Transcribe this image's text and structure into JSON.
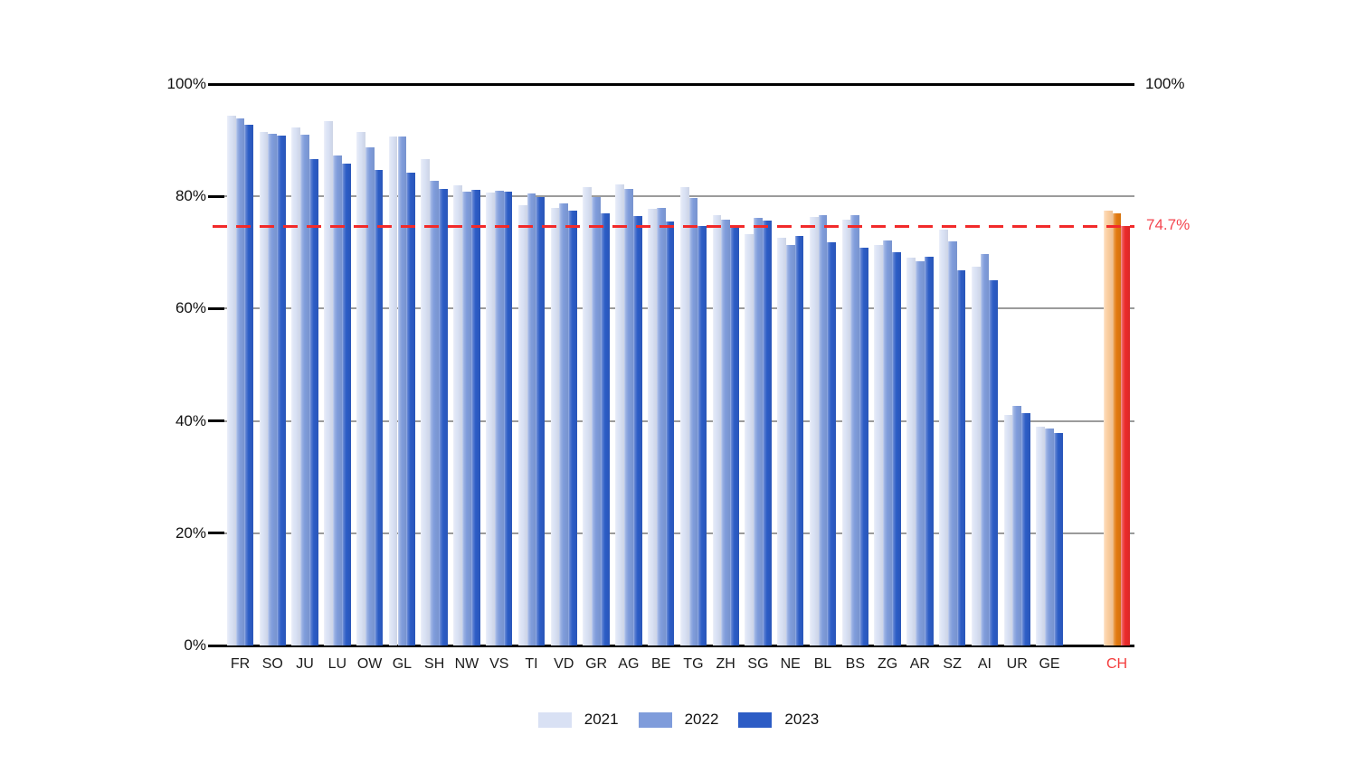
{
  "chart_data": {
    "type": "bar",
    "title": "",
    "categories": [
      "FR",
      "SO",
      "JU",
      "LU",
      "OW",
      "GL",
      "SH",
      "NW",
      "VS",
      "TI",
      "VD",
      "GR",
      "AG",
      "BE",
      "TG",
      "ZH",
      "SG",
      "NE",
      "BL",
      "BS",
      "ZG",
      "AR",
      "SZ",
      "AI",
      "UR",
      "GE"
    ],
    "series": [
      {
        "name": "2021",
        "values": [
          94.4,
          91.5,
          92.2,
          93.4,
          91.4,
          90.6,
          86.7,
          82.0,
          80.6,
          78.5,
          77.9,
          81.6,
          82.2,
          77.8,
          81.6,
          76.6,
          73.2,
          72.6,
          76.3,
          75.9,
          71.4,
          69.1,
          74.1,
          67.5,
          41.0,
          38.9
        ]
      },
      {
        "name": "2022",
        "values": [
          93.9,
          91.1,
          91.0,
          87.3,
          88.8,
          90.6,
          82.8,
          80.9,
          81.0,
          80.5,
          78.8,
          79.8,
          81.3,
          78.0,
          79.7,
          75.8,
          76.2,
          71.4,
          76.6,
          76.6,
          72.1,
          68.4,
          72.0,
          69.8,
          42.6,
          38.6
        ]
      },
      {
        "name": "2023",
        "values": [
          92.7,
          90.8,
          86.7,
          85.8,
          84.7,
          84.2,
          81.3,
          81.2,
          80.9,
          79.8,
          77.4,
          76.9,
          76.5,
          75.6,
          74.7,
          74.8,
          75.7,
          73.0,
          71.8,
          70.9,
          70.1,
          69.3,
          66.9,
          65.0,
          41.4,
          37.8
        ]
      }
    ],
    "switzerland": {
      "label": "CH",
      "values": [
        77.4,
        77.0,
        74.7
      ]
    },
    "reference_line": {
      "value": 74.7,
      "label": "74.7%"
    },
    "y_axis": {
      "ylim": [
        0,
        100
      ],
      "ticks": [
        {
          "value": 0,
          "label": "0%"
        },
        {
          "value": 20,
          "label": "20%"
        },
        {
          "value": 40,
          "label": "40%"
        },
        {
          "value": 60,
          "label": "60%"
        },
        {
          "value": 80,
          "label": "80%"
        },
        {
          "value": 100,
          "label": "100%"
        }
      ],
      "right_label": "100%"
    },
    "legend_position": "bottom",
    "grid": true,
    "legend": [
      {
        "label": "2021",
        "color": "#D9E1F4"
      },
      {
        "label": "2022",
        "color": "#7F9CDB"
      },
      {
        "label": "2023",
        "color": "#2C5CC5"
      }
    ],
    "ch_colors": [
      "#FBCD9E",
      "#E2790F",
      "#EA2A2A"
    ]
  },
  "colors": {
    "background": "#FFFFFF",
    "grid": "#9B9B9B",
    "axis": "#000000",
    "reference": "#F22A2A",
    "reference_label": "#F4454F",
    "ch_label": "#F43B3B"
  }
}
